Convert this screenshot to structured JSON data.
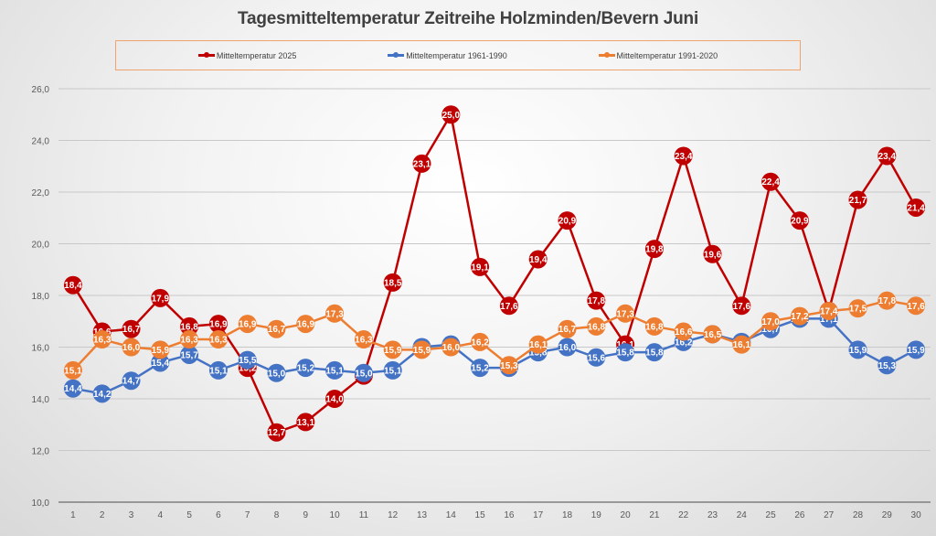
{
  "chart_data": {
    "type": "line",
    "title": "Tagesmitteltemperatur Zeitreihe Holzminden/Bevern Juni",
    "xlabel": "",
    "ylabel": "",
    "ylim": [
      10,
      26
    ],
    "yticks": [
      "10,0",
      "12,0",
      "14,0",
      "16,0",
      "18,0",
      "20,0",
      "22,0",
      "24,0",
      "26,0"
    ],
    "ytick_values": [
      10,
      12,
      14,
      16,
      18,
      20,
      22,
      24,
      26
    ],
    "grid": true,
    "legend_position": "top",
    "x": [
      1,
      2,
      3,
      4,
      5,
      6,
      7,
      8,
      9,
      10,
      11,
      12,
      13,
      14,
      15,
      16,
      17,
      18,
      19,
      20,
      21,
      22,
      23,
      24,
      25,
      26,
      27,
      28,
      29,
      30
    ],
    "series": [
      {
        "name": "Mitteltemperatur 2025",
        "color": "#c00000",
        "values": [
          18.4,
          16.6,
          16.7,
          17.9,
          16.8,
          16.9,
          15.2,
          12.7,
          13.1,
          14.0,
          14.9,
          18.5,
          23.1,
          25.0,
          19.1,
          17.6,
          19.4,
          20.9,
          17.8,
          16.1,
          19.8,
          23.4,
          19.6,
          17.6,
          22.4,
          20.9,
          17.4,
          21.7,
          23.4,
          21.4
        ]
      },
      {
        "name": "Mitteltemperatur 1961-1990",
        "color": "#4472c4",
        "values": [
          14.4,
          14.2,
          14.7,
          15.4,
          15.7,
          15.1,
          15.5,
          15.0,
          15.2,
          15.1,
          15.0,
          15.1,
          16.0,
          16.1,
          15.2,
          15.2,
          15.8,
          16.0,
          15.6,
          15.8,
          15.8,
          16.2,
          16.5,
          16.2,
          16.7,
          17.1,
          17.1,
          15.9,
          15.3,
          15.9
        ]
      },
      {
        "name": "Mitteltemperatur 1991-2020",
        "color": "#ed7d31",
        "values": [
          15.1,
          16.3,
          16.0,
          15.9,
          16.3,
          16.3,
          16.9,
          16.7,
          16.9,
          17.3,
          16.3,
          15.9,
          15.9,
          16.0,
          16.2,
          15.3,
          16.1,
          16.7,
          16.8,
          17.3,
          16.8,
          16.6,
          16.5,
          16.1,
          17.0,
          17.2,
          17.4,
          17.5,
          17.8,
          17.6
        ]
      }
    ]
  }
}
